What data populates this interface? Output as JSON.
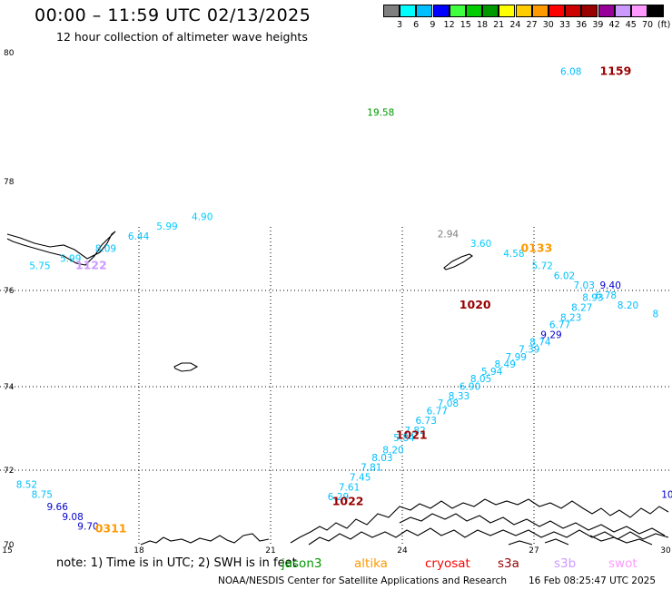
{
  "header": {
    "title": "00:00 – 11:59 UTC 02/13/2025",
    "subtitle": "12 hour collection of altimeter wave heights"
  },
  "scale": {
    "colors": [
      "#7f7f7f",
      "#00ffff",
      "#00bfff",
      "#0000ff",
      "#3fff3f",
      "#00cc00",
      "#009900",
      "#ffff00",
      "#ffcc00",
      "#ff9900",
      "#ff0000",
      "#cc0000",
      "#990000",
      "#990099",
      "#cc99ff",
      "#ff99ff",
      "#000000"
    ],
    "labels": [
      "3",
      "6",
      "9",
      "12",
      "15",
      "18",
      "21",
      "24",
      "27",
      "30",
      "33",
      "36",
      "39",
      "42",
      "45",
      "70",
      "(ft)"
    ]
  },
  "axes": {
    "lat_labels": [
      "80",
      "78",
      "76",
      "74",
      "72",
      "70"
    ],
    "lon_labels": [
      "15",
      "18",
      "21",
      "24",
      "27",
      "30"
    ]
  },
  "chart_data": {
    "type": "scatter",
    "xlabel": "",
    "ylabel": "",
    "xlim": [
      15,
      30
    ],
    "ylim": [
      70,
      80
    ],
    "units": "ft",
    "series": [
      {
        "points": [
          {
            "lon": 25.3,
            "lat": 74.8,
            "text": "1020",
            "color": "#990000",
            "kind": "time"
          },
          {
            "lon": 28.5,
            "lat": 75.2,
            "text": "9.40",
            "color": "#0000cd"
          },
          {
            "lon": 28.1,
            "lat": 74.95,
            "text": "8.93",
            "color": "#00bfff"
          },
          {
            "lon": 27.85,
            "lat": 74.75,
            "text": "8.27",
            "color": "#00bfff"
          },
          {
            "lon": 27.6,
            "lat": 74.55,
            "text": "8.23",
            "color": "#00bfff"
          },
          {
            "lon": 27.35,
            "lat": 74.4,
            "text": "6.77",
            "color": "#00bfff"
          },
          {
            "lon": 27.15,
            "lat": 74.2,
            "text": "9.29",
            "color": "#0000cd"
          },
          {
            "lon": 26.9,
            "lat": 74.05,
            "text": "8.74",
            "color": "#00bfff"
          },
          {
            "lon": 26.65,
            "lat": 73.9,
            "text": "7.39",
            "color": "#00bfff"
          },
          {
            "lon": 26.35,
            "lat": 73.75,
            "text": "7.99",
            "color": "#00bfff"
          },
          {
            "lon": 26.1,
            "lat": 73.6,
            "text": "8.49",
            "color": "#00bfff"
          },
          {
            "lon": 25.8,
            "lat": 73.45,
            "text": "5.94",
            "color": "#00bfff"
          },
          {
            "lon": 25.55,
            "lat": 73.3,
            "text": "8.05",
            "color": "#00bfff"
          },
          {
            "lon": 25.3,
            "lat": 73.15,
            "text": "6.90",
            "color": "#00bfff"
          },
          {
            "lon": 25.05,
            "lat": 72.95,
            "text": "8.33",
            "color": "#00bfff"
          },
          {
            "lon": 24.8,
            "lat": 72.8,
            "text": "7.08",
            "color": "#00bfff"
          },
          {
            "lon": 24.55,
            "lat": 72.65,
            "text": "6.77",
            "color": "#00bfff"
          },
          {
            "lon": 24.3,
            "lat": 72.45,
            "text": "6.73",
            "color": "#00bfff"
          },
          {
            "lon": 24.05,
            "lat": 72.25,
            "text": "7.82",
            "color": "#00bfff"
          },
          {
            "lon": 23.85,
            "lat": 72.15,
            "text": "1021",
            "color": "#990000",
            "kind": "time"
          },
          {
            "lon": 23.8,
            "lat": 72.1,
            "text": "5.84",
            "color": "#00bfff"
          },
          {
            "lon": 23.55,
            "lat": 71.85,
            "text": "8.20",
            "color": "#00bfff"
          },
          {
            "lon": 23.3,
            "lat": 71.7,
            "text": "8.03",
            "color": "#00bfff"
          },
          {
            "lon": 23.05,
            "lat": 71.5,
            "text": "7.81",
            "color": "#00bfff"
          },
          {
            "lon": 22.8,
            "lat": 71.3,
            "text": "7.45",
            "color": "#00bfff"
          },
          {
            "lon": 22.55,
            "lat": 71.1,
            "text": "7.61",
            "color": "#00bfff"
          },
          {
            "lon": 22.3,
            "lat": 70.9,
            "text": "6.29",
            "color": "#00bfff"
          },
          {
            "lon": 22.4,
            "lat": 70.8,
            "text": "1022",
            "color": "#990000",
            "kind": "time"
          },
          {
            "lon": 23.2,
            "lat": 78.72,
            "text": "19.58",
            "color": "#009900"
          },
          {
            "lon": 24.8,
            "lat": 76.25,
            "text": "2.94",
            "color": "#7f7f7f"
          },
          {
            "lon": 25.55,
            "lat": 76.05,
            "text": "3.60",
            "color": "#00ccff"
          },
          {
            "lon": 26.3,
            "lat": 75.85,
            "text": "4.58",
            "color": "#00ccff"
          },
          {
            "lon": 26.7,
            "lat": 75.95,
            "text": "0133",
            "color": "#ff9900",
            "kind": "time"
          },
          {
            "lon": 26.95,
            "lat": 75.6,
            "text": "5.72",
            "color": "#00ccff"
          },
          {
            "lon": 27.45,
            "lat": 75.4,
            "text": "6.02",
            "color": "#00bfff"
          },
          {
            "lon": 27.9,
            "lat": 75.2,
            "text": "7.03",
            "color": "#00bfff"
          },
          {
            "lon": 28.4,
            "lat": 75.0,
            "text": "6.78",
            "color": "#00bfff"
          },
          {
            "lon": 28.9,
            "lat": 74.8,
            "text": "8.20",
            "color": "#00bfff"
          },
          {
            "lon": 29.7,
            "lat": 74.62,
            "text": "8",
            "color": "#00bfff"
          },
          {
            "lon": 15.5,
            "lat": 75.6,
            "text": "5.75",
            "color": "#00ccff"
          },
          {
            "lon": 16.2,
            "lat": 75.75,
            "text": "5.99",
            "color": "#00ccff"
          },
          {
            "lon": 16.55,
            "lat": 75.6,
            "text": "1122",
            "color": "#cc99ff",
            "kind": "time"
          },
          {
            "lon": 17.0,
            "lat": 75.95,
            "text": "8.09",
            "color": "#00bfff"
          },
          {
            "lon": 17.75,
            "lat": 76.2,
            "text": "6.44",
            "color": "#00bfff"
          },
          {
            "lon": 18.4,
            "lat": 76.4,
            "text": "5.99",
            "color": "#00ccff"
          },
          {
            "lon": 19.2,
            "lat": 76.6,
            "text": "4.90",
            "color": "#00ccff"
          },
          {
            "lon": 15.2,
            "lat": 71.15,
            "text": "8.52",
            "color": "#00bfff"
          },
          {
            "lon": 15.55,
            "lat": 70.95,
            "text": "8.75",
            "color": "#00bfff"
          },
          {
            "lon": 15.9,
            "lat": 70.7,
            "text": "9.66",
            "color": "#0000cd"
          },
          {
            "lon": 16.25,
            "lat": 70.5,
            "text": "9.08",
            "color": "#0000cd"
          },
          {
            "lon": 16.6,
            "lat": 70.3,
            "text": "9.70",
            "color": "#0000cd"
          },
          {
            "lon": 17.0,
            "lat": 70.25,
            "text": "0311",
            "color": "#ff9900",
            "kind": "time"
          },
          {
            "lon": 27.6,
            "lat": 79.55,
            "text": "6.08",
            "color": "#00bfff"
          },
          {
            "lon": 28.5,
            "lat": 79.55,
            "text": "1159",
            "color": "#990000",
            "kind": "time"
          },
          {
            "lon": 29.9,
            "lat": 70.95,
            "text": "10",
            "color": "#0000cd"
          }
        ]
      }
    ]
  },
  "footer": {
    "note": "note:  1) Time is in UTC;  2) SWH is in feet",
    "satellites": [
      {
        "name": "jason3",
        "color": "#009900"
      },
      {
        "name": "altika",
        "color": "#ff9900"
      },
      {
        "name": "cryosat",
        "color": "#ff0000"
      },
      {
        "name": "s3a",
        "color": "#990000"
      },
      {
        "name": "s3b",
        "color": "#cc99ff"
      },
      {
        "name": "swot",
        "color": "#ff99ff"
      }
    ],
    "credit": "NOAA/NESDIS Center for Satellite Applications and Research",
    "stamp": "16 Feb 08:25:47 UTC 2025"
  }
}
